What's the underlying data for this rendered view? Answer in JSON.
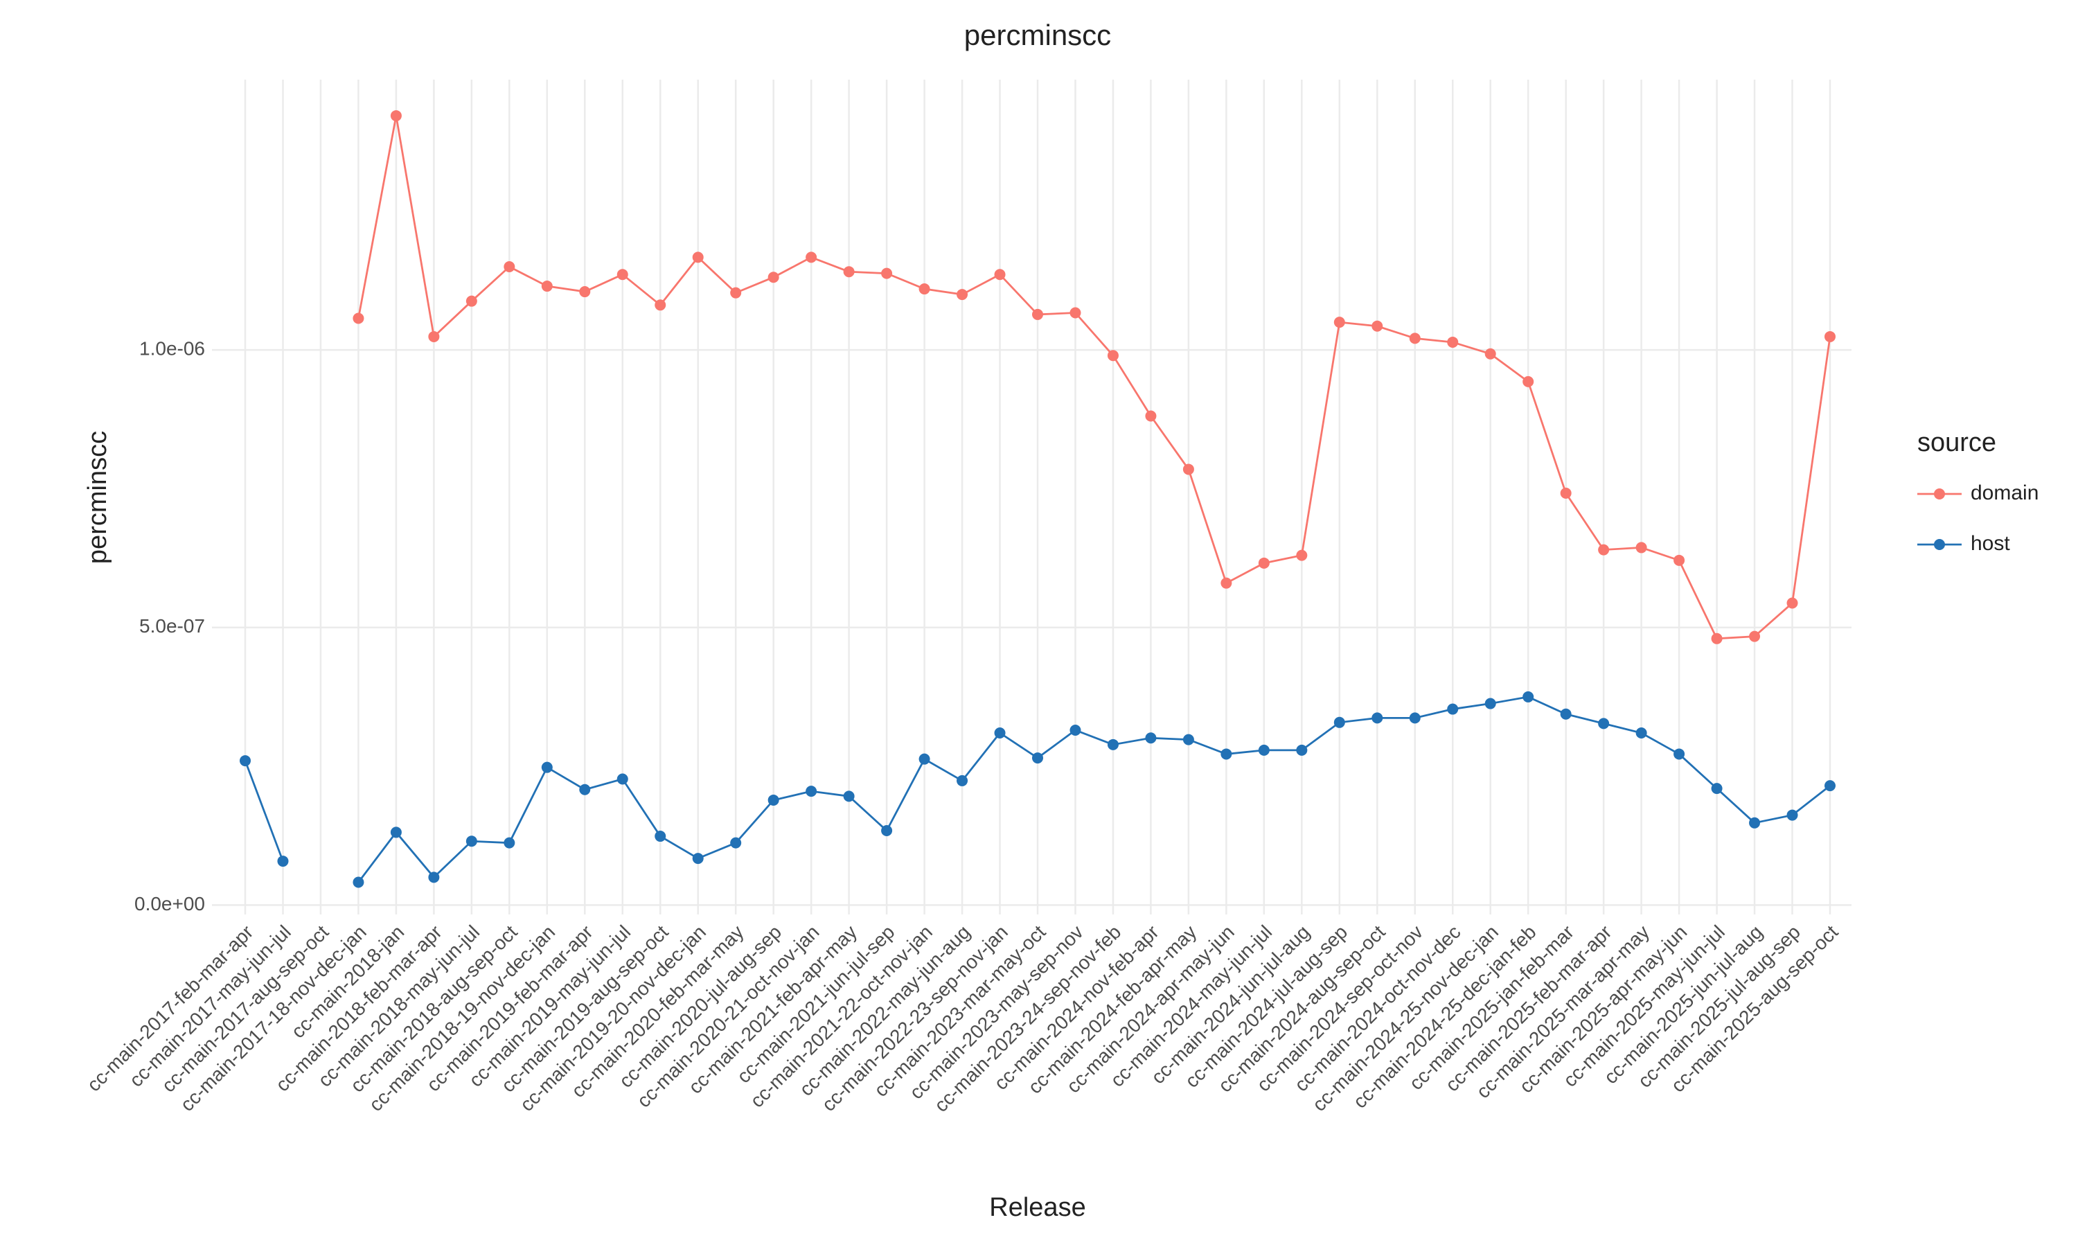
{
  "chart_data": {
    "type": "line",
    "title": "percminscc",
    "x_label": "Release",
    "y_label": "percminscc",
    "legend_title": "source",
    "legend_position": "right",
    "grid": true,
    "categories": [
      "cc-main-2017-feb-mar-apr",
      "cc-main-2017-may-jun-jul",
      "cc-main-2017-aug-sep-oct",
      "cc-main-2017-18-nov-dec-jan",
      "cc-main-2018-jan",
      "cc-main-2018-feb-mar-apr",
      "cc-main-2018-may-jun-jul",
      "cc-main-2018-aug-sep-oct",
      "cc-main-2018-19-nov-dec-jan",
      "cc-main-2019-feb-mar-apr",
      "cc-main-2019-may-jun-jul",
      "cc-main-2019-aug-sep-oct",
      "cc-main-2019-20-nov-dec-jan",
      "cc-main-2020-feb-mar-may",
      "cc-main-2020-jul-aug-sep",
      "cc-main-2020-21-oct-nov-jan",
      "cc-main-2021-feb-apr-may",
      "cc-main-2021-jun-jul-sep",
      "cc-main-2021-22-oct-nov-jan",
      "cc-main-2022-may-jun-aug",
      "cc-main-2022-23-sep-nov-jan",
      "cc-main-2023-mar-may-oct",
      "cc-main-2023-may-sep-nov",
      "cc-main-2023-24-sep-nov-feb",
      "cc-main-2024-nov-feb-apr",
      "cc-main-2024-feb-apr-may",
      "cc-main-2024-apr-may-jun",
      "cc-main-2024-may-jun-jul",
      "cc-main-2024-jun-jul-aug",
      "cc-main-2024-jul-aug-sep",
      "cc-main-2024-aug-sep-oct",
      "cc-main-2024-sep-oct-nov",
      "cc-main-2024-oct-nov-dec",
      "cc-main-2024-25-nov-dec-jan",
      "cc-main-2024-25-dec-jan-feb",
      "cc-main-2025-jan-feb-mar",
      "cc-main-2025-feb-mar-apr",
      "cc-main-2025-mar-apr-may",
      "cc-main-2025-apr-may-jun",
      "cc-main-2025-may-jun-jul",
      "cc-main-2025-jun-jul-aug",
      "cc-main-2025-jul-aug-sep",
      "cc-main-2025-aug-sep-oct"
    ],
    "series": [
      {
        "name": "domain",
        "color": "#f8766d",
        "values": [
          null,
          null,
          null,
          1.057e-06,
          1.422e-06,
          1.024e-06,
          1.088e-06,
          1.15e-06,
          1.115e-06,
          1.105e-06,
          1.136e-06,
          1.081e-06,
          1.167e-06,
          1.103e-06,
          1.131e-06,
          1.167e-06,
          1.141e-06,
          1.138e-06,
          1.11e-06,
          1.1e-06,
          1.136e-06,
          1.064e-06,
          1.067e-06,
          9.9e-07,
          8.81e-07,
          7.85e-07,
          5.8e-07,
          6.16e-07,
          6.3e-07,
          1.05e-06,
          1.043e-06,
          1.021e-06,
          1.014e-06,
          9.93e-07,
          9.43e-07,
          7.42e-07,
          6.4e-07,
          6.44e-07,
          6.21e-07,
          4.8e-07,
          4.84e-07,
          5.44e-07,
          1.024e-06
        ]
      },
      {
        "name": "host",
        "color": "#2271b5",
        "values": [
          2.6e-07,
          7.9e-08,
          null,
          4.1e-08,
          1.31e-07,
          5e-08,
          1.15e-07,
          1.12e-07,
          2.48e-07,
          2.08e-07,
          2.27e-07,
          1.24e-07,
          8.4e-08,
          1.12e-07,
          1.89e-07,
          2.05e-07,
          1.96e-07,
          1.34e-07,
          2.63e-07,
          2.24e-07,
          3.1e-07,
          2.65e-07,
          3.15e-07,
          2.89e-07,
          3.01e-07,
          2.98e-07,
          2.72e-07,
          2.79e-07,
          2.79e-07,
          3.29e-07,
          3.37e-07,
          3.37e-07,
          3.53e-07,
          3.63e-07,
          3.75e-07,
          3.44e-07,
          3.27e-07,
          3.1e-07,
          2.72e-07,
          2.1e-07,
          1.48e-07,
          1.62e-07,
          2.15e-07
        ]
      }
    ],
    "ylim": [
      -1.7e-08,
      1.487e-06
    ],
    "yticks": [
      {
        "value": 0,
        "label": "0.0e+00"
      },
      {
        "value": 5e-07,
        "label": "5.0e-07"
      },
      {
        "value": 1e-06,
        "label": "1.0e-06"
      }
    ]
  }
}
